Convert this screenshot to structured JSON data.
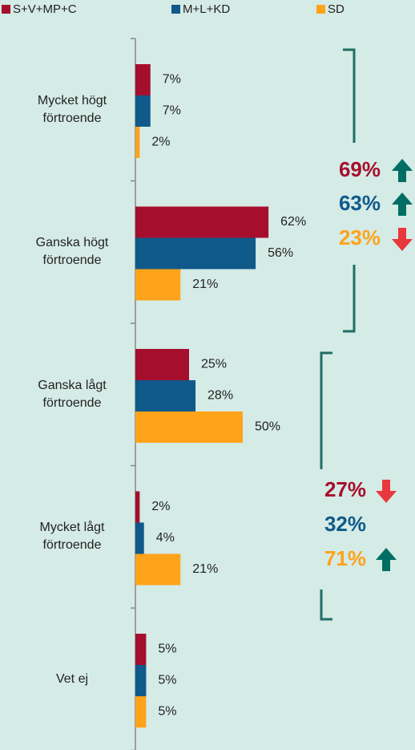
{
  "chart_data": {
    "type": "bar",
    "orientation": "horizontal",
    "categories": [
      "Mycket högt förtroende",
      "Ganska högt förtroende",
      "Ganska lågt förtroende",
      "Mycket lågt förtroende",
      "Vet ej"
    ],
    "series": [
      {
        "name": "S+V+MP+C",
        "color": "#a50f2d",
        "values": [
          7,
          62,
          25,
          2,
          5
        ],
        "value_labels": [
          "7%",
          "62%",
          "25%",
          "2%",
          "5%"
        ]
      },
      {
        "name": "M+L+KD",
        "color": "#0f5a8a",
        "values": [
          7,
          56,
          28,
          4,
          5
        ],
        "value_labels": [
          "7%",
          "56%",
          "28%",
          "4%",
          "5%"
        ]
      },
      {
        "name": "SD",
        "color": "#ffa31a",
        "values": [
          2,
          21,
          50,
          21,
          5
        ],
        "value_labels": [
          "2%",
          "21%",
          "50%",
          "21%",
          "5%"
        ]
      }
    ],
    "legend": "top",
    "annotations": [
      {
        "text": "69%",
        "color": "#a50f2d",
        "arrow": "up"
      },
      {
        "text": "63%",
        "color": "#0f5a8a",
        "arrow": "up"
      },
      {
        "text": "23%",
        "color": "#ffa31a",
        "arrow": "down"
      },
      {
        "text": "27%",
        "color": "#a50f2d",
        "arrow": "down"
      },
      {
        "text": "32%",
        "color": "#0f5a8a",
        "arrow": null
      },
      {
        "text": "71%",
        "color": "#ffa31a",
        "arrow": "up"
      }
    ]
  }
}
